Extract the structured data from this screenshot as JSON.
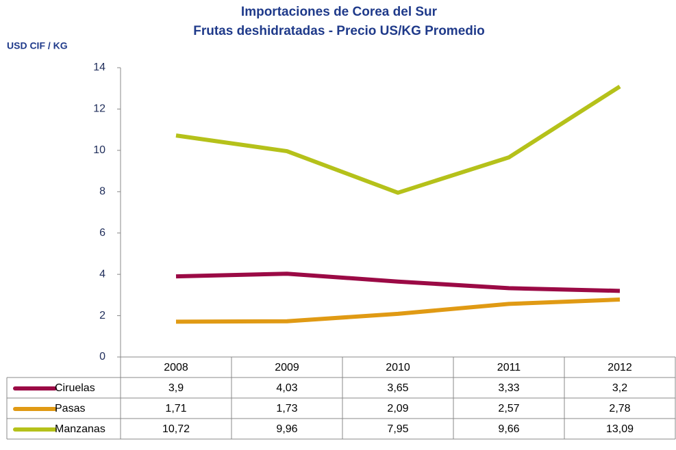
{
  "chart_data": {
    "type": "line",
    "title": "Importaciones de Corea del Sur",
    "subtitle": "Frutas deshidratadas - Precio US/KG Promedio",
    "y_label": "USD CIF / KG",
    "categories": [
      "2008",
      "2009",
      "2010",
      "2011",
      "2012"
    ],
    "series": [
      {
        "name": "Ciruelas",
        "color": "#9b0a45",
        "values": [
          3.9,
          4.03,
          3.65,
          3.33,
          3.2
        ],
        "value_labels": [
          "3,9",
          "4,03",
          "3,65",
          "3,33",
          "3,2"
        ]
      },
      {
        "name": "Pasas",
        "color": "#e09a14",
        "values": [
          1.71,
          1.73,
          2.09,
          2.57,
          2.78
        ],
        "value_labels": [
          "1,71",
          "1,73",
          "2,09",
          "2,57",
          "2,78"
        ]
      },
      {
        "name": "Manzanas",
        "color": "#b5c11a",
        "values": [
          10.72,
          9.96,
          7.95,
          9.66,
          13.09
        ],
        "value_labels": [
          "10,72",
          "9,96",
          "7,95",
          "9,66",
          "13,09"
        ]
      }
    ],
    "ylim": [
      0,
      14
    ],
    "yticks": [
      0,
      2,
      4,
      6,
      8,
      10,
      12,
      14
    ],
    "grid": false
  }
}
